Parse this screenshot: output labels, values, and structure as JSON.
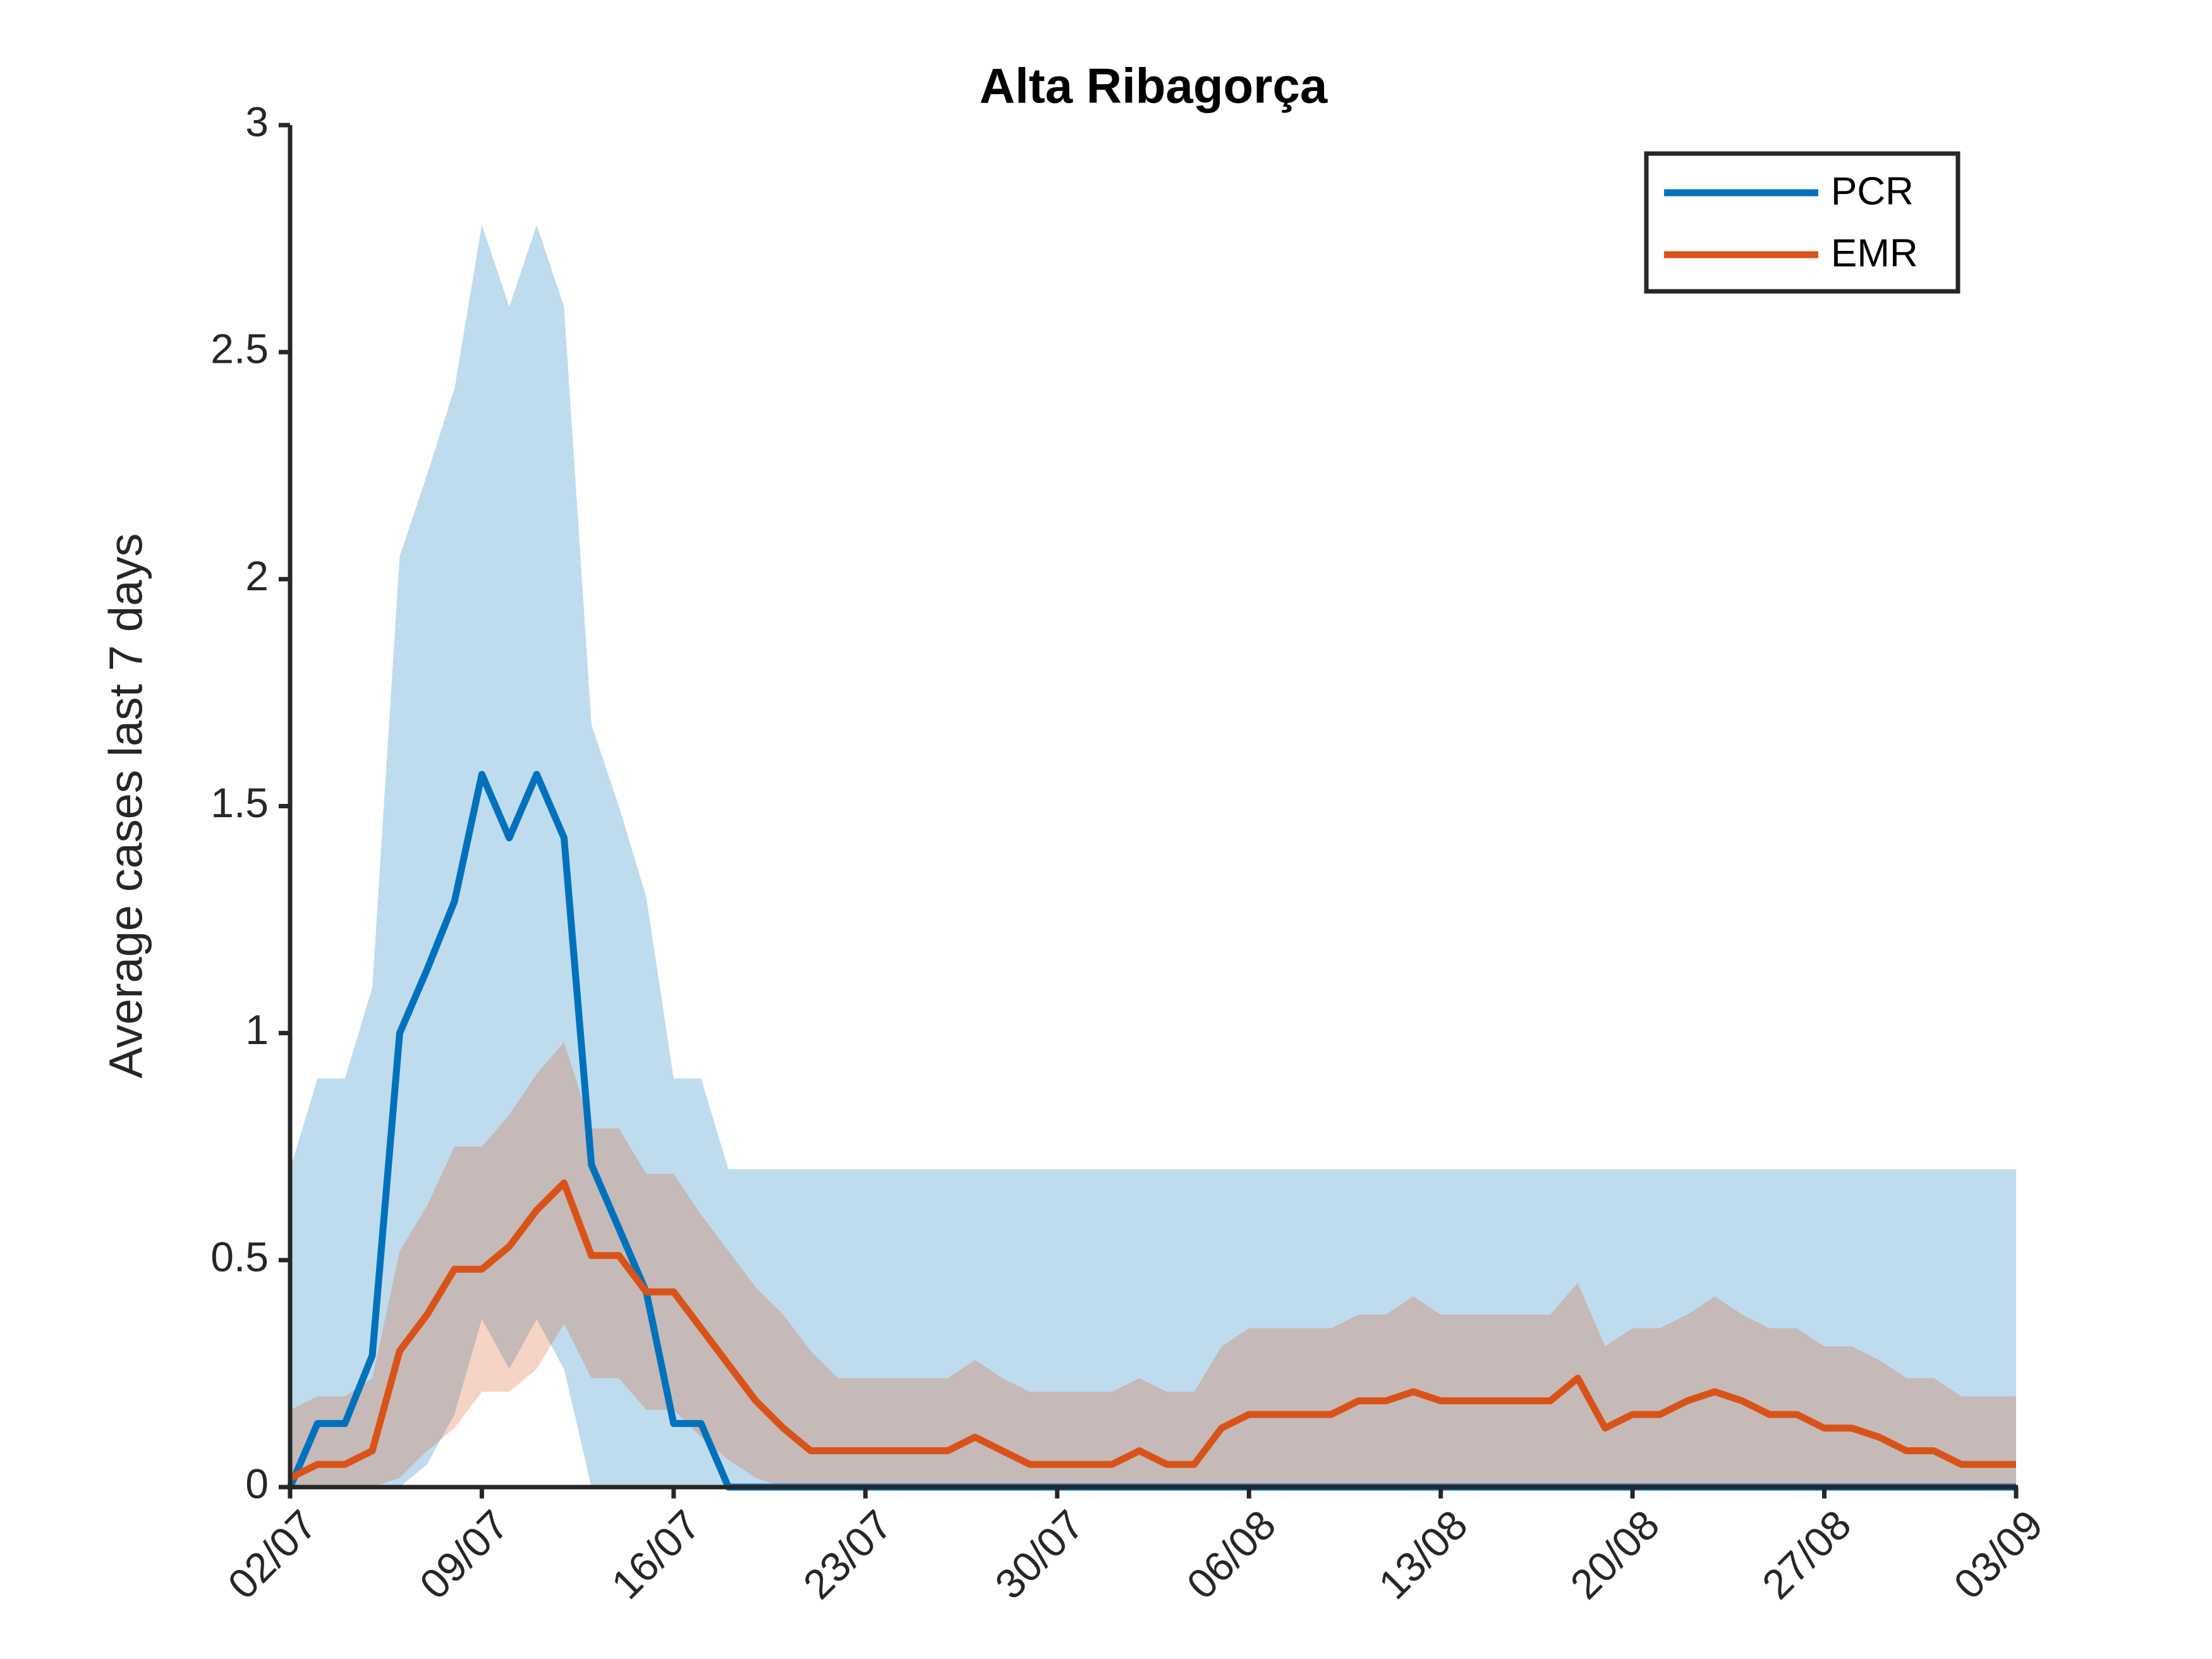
{
  "chart_data": {
    "type": "line",
    "title": "Alta Ribagorça",
    "ylabel": "Average cases last 7 days",
    "x": [
      "02/07",
      "03/07",
      "04/07",
      "05/07",
      "06/07",
      "07/07",
      "08/07",
      "09/07",
      "10/07",
      "11/07",
      "12/07",
      "13/07",
      "14/07",
      "15/07",
      "16/07",
      "17/07",
      "18/07",
      "19/07",
      "20/07",
      "21/07",
      "22/07",
      "23/07",
      "24/07",
      "25/07",
      "26/07",
      "27/07",
      "28/07",
      "29/07",
      "30/07",
      "31/07",
      "01/08",
      "02/08",
      "03/08",
      "04/08",
      "05/08",
      "06/08",
      "07/08",
      "08/08",
      "09/08",
      "10/08",
      "11/08",
      "12/08",
      "13/08",
      "14/08",
      "15/08",
      "16/08",
      "17/08",
      "18/08",
      "19/08",
      "20/08",
      "21/08",
      "22/08",
      "23/08",
      "24/08",
      "25/08",
      "26/08",
      "27/08",
      "28/08",
      "29/08",
      "30/08",
      "31/08",
      "01/09",
      "02/09",
      "03/09"
    ],
    "series": [
      {
        "name": "PCR",
        "color": "#0072bd",
        "values": [
          0,
          0.14,
          0.14,
          0.29,
          1.0,
          1.14,
          1.29,
          1.57,
          1.43,
          1.57,
          1.43,
          0.71,
          0.57,
          0.43,
          0.14,
          0.14,
          0,
          0,
          0,
          0,
          0,
          0,
          0,
          0,
          0,
          0,
          0,
          0,
          0,
          0,
          0,
          0,
          0,
          0,
          0,
          0,
          0,
          0,
          0,
          0,
          0,
          0,
          0,
          0,
          0,
          0,
          0,
          0,
          0,
          0,
          0,
          0,
          0,
          0,
          0,
          0,
          0,
          0,
          0,
          0,
          0,
          0,
          0,
          0
        ],
        "upper": [
          0.7,
          0.9,
          0.9,
          1.1,
          2.05,
          2.23,
          2.42,
          2.78,
          2.6,
          2.78,
          2.6,
          1.68,
          1.5,
          1.3,
          0.9,
          0.9,
          0.7,
          0.7,
          0.7,
          0.7,
          0.7,
          0.7,
          0.7,
          0.7,
          0.7,
          0.7,
          0.7,
          0.7,
          0.7,
          0.7,
          0.7,
          0.7,
          0.7,
          0.7,
          0.7,
          0.7,
          0.7,
          0.7,
          0.7,
          0.7,
          0.7,
          0.7,
          0.7,
          0.7,
          0.7,
          0.7,
          0.7,
          0.7,
          0.7,
          0.7,
          0.7,
          0.7,
          0.7,
          0.7,
          0.7,
          0.7,
          0.7,
          0.7,
          0.7,
          0.7,
          0.7,
          0.7,
          0.7,
          0.7
        ],
        "lower": [
          0,
          0,
          0,
          0,
          0,
          0.05,
          0.16,
          0.37,
          0.26,
          0.37,
          0.26,
          0,
          0,
          0,
          0,
          0,
          0,
          0,
          0,
          0,
          0,
          0,
          0,
          0,
          0,
          0,
          0,
          0,
          0,
          0,
          0,
          0,
          0,
          0,
          0,
          0,
          0,
          0,
          0,
          0,
          0,
          0,
          0,
          0,
          0,
          0,
          0,
          0,
          0,
          0,
          0,
          0,
          0,
          0,
          0,
          0,
          0,
          0,
          0,
          0,
          0,
          0,
          0,
          0
        ]
      },
      {
        "name": "EMR",
        "color": "#d95319",
        "values": [
          0.02,
          0.05,
          0.05,
          0.08,
          0.3,
          0.38,
          0.48,
          0.48,
          0.53,
          0.61,
          0.67,
          0.51,
          0.51,
          0.43,
          0.43,
          0.35,
          0.27,
          0.19,
          0.13,
          0.08,
          0.08,
          0.08,
          0.08,
          0.08,
          0.08,
          0.11,
          0.08,
          0.05,
          0.05,
          0.05,
          0.05,
          0.08,
          0.05,
          0.05,
          0.13,
          0.16,
          0.16,
          0.16,
          0.16,
          0.19,
          0.19,
          0.21,
          0.19,
          0.19,
          0.19,
          0.19,
          0.19,
          0.24,
          0.13,
          0.16,
          0.16,
          0.19,
          0.21,
          0.19,
          0.16,
          0.16,
          0.13,
          0.13,
          0.11,
          0.08,
          0.08,
          0.05,
          0.05,
          0.05
        ],
        "upper": [
          0.17,
          0.2,
          0.2,
          0.24,
          0.52,
          0.62,
          0.75,
          0.75,
          0.82,
          0.91,
          0.98,
          0.79,
          0.79,
          0.69,
          0.69,
          0.6,
          0.52,
          0.44,
          0.38,
          0.3,
          0.24,
          0.24,
          0.24,
          0.24,
          0.24,
          0.28,
          0.24,
          0.21,
          0.21,
          0.21,
          0.21,
          0.24,
          0.21,
          0.21,
          0.31,
          0.35,
          0.35,
          0.35,
          0.35,
          0.38,
          0.38,
          0.42,
          0.38,
          0.38,
          0.38,
          0.38,
          0.38,
          0.45,
          0.31,
          0.35,
          0.35,
          0.38,
          0.42,
          0.38,
          0.35,
          0.35,
          0.31,
          0.31,
          0.28,
          0.24,
          0.24,
          0.2,
          0.2,
          0.2
        ],
        "lower": [
          0,
          0,
          0,
          0,
          0.02,
          0.08,
          0.13,
          0.21,
          0.21,
          0.26,
          0.36,
          0.24,
          0.24,
          0.17,
          0.17,
          0.11,
          0.06,
          0.02,
          0,
          0,
          0,
          0,
          0,
          0,
          0,
          0,
          0,
          0,
          0,
          0,
          0,
          0,
          0,
          0,
          0,
          0,
          0,
          0,
          0,
          0,
          0,
          0,
          0,
          0,
          0,
          0,
          0,
          0,
          0,
          0,
          0,
          0,
          0,
          0,
          0,
          0,
          0,
          0,
          0,
          0,
          0,
          0,
          0,
          0
        ]
      }
    ],
    "xticks": [
      "02/07",
      "09/07",
      "16/07",
      "23/07",
      "30/07",
      "06/08",
      "13/08",
      "20/08",
      "27/08",
      "03/09"
    ],
    "ylim": [
      0,
      3
    ],
    "yticks": [
      0,
      0.5,
      1,
      1.5,
      2,
      2.5,
      3
    ],
    "grid": false,
    "legend": "upper right"
  }
}
